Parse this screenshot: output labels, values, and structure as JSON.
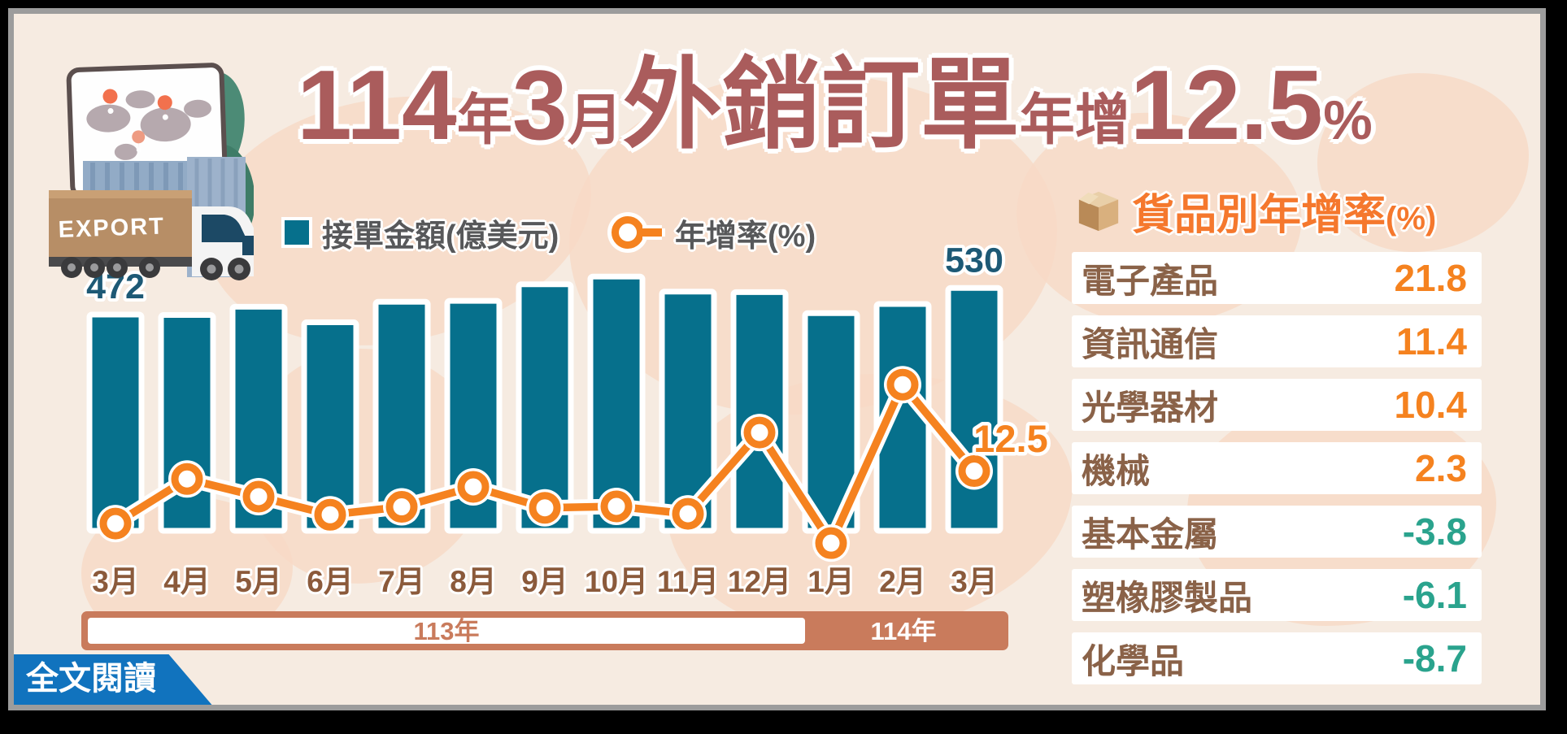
{
  "palette": {
    "background": "#F6EBE1",
    "map_shape": "#F7D9C6",
    "bar": "#06708C",
    "bar_label": "#1D5975",
    "line": "#F5821F",
    "title": "#AA5C5C",
    "month_label": "#8B5A3B",
    "year_band": "#C97B5C",
    "table_label": "#8A6248",
    "positive": "#F5821F",
    "negative": "#2AA38D",
    "panel_title": "#F5782D",
    "legend_text": "#57585A",
    "read_more_bg": "#1173BE",
    "frame_black": "#000000",
    "frame_gray": "#9C9C9C"
  },
  "title": {
    "year_number": "114",
    "year_unit": "年",
    "month_number": "3",
    "month_unit": "月",
    "subject": "外銷訂單",
    "growth_label": "年增",
    "rate": "12.5",
    "percent_sign": "%"
  },
  "legend": [
    {
      "label": "接單金額(億美元)",
      "marker": "bar-square"
    },
    {
      "label": "年增率(%)",
      "marker": "line-circle"
    }
  ],
  "chart_data": {
    "type": "bar+line",
    "title": "114年3月外銷訂單年增12.5%",
    "categories": [
      "3月",
      "4月",
      "5月",
      "6月",
      "7月",
      "8月",
      "9月",
      "10月",
      "11月",
      "12月",
      "1月",
      "2月",
      "3月"
    ],
    "series": [
      {
        "name": "接單金額(億美元)",
        "type": "bar",
        "values": [
          472,
          471,
          489,
          455,
          500,
          502,
          538,
          555,
          522,
          521,
          475,
          495,
          530
        ]
      },
      {
        "name": "年增率(%)",
        "type": "line",
        "values": [
          1.2,
          10.8,
          7.0,
          3.1,
          4.8,
          9.1,
          4.6,
          4.9,
          3.3,
          20.8,
          -3.0,
          31.1,
          12.5
        ]
      }
    ],
    "bar_value_labels": [
      {
        "index": 0,
        "text": "472"
      },
      {
        "index": 12,
        "text": "530"
      }
    ],
    "line_end_label": "12.5",
    "x_axis_groups": [
      {
        "label": "113年",
        "start": 0,
        "end": 9
      },
      {
        "label": "114年",
        "start": 10,
        "end": 12
      }
    ],
    "grid": false,
    "legend_position": "top"
  },
  "category_table": {
    "title_main": "貨品別年增率",
    "title_unit": "(%)",
    "rows": [
      {
        "label": "電子產品",
        "value": "21.8"
      },
      {
        "label": "資訊通信",
        "value": "11.4"
      },
      {
        "label": "光學器材",
        "value": "10.4"
      },
      {
        "label": "機械",
        "value": "2.3"
      },
      {
        "label": "基本金屬",
        "value": "-3.8"
      },
      {
        "label": "塑橡膠製品",
        "value": "-6.1"
      },
      {
        "label": "化學品",
        "value": "-8.7"
      }
    ]
  },
  "footer": {
    "read_more": "全文閱讀"
  },
  "logo": {
    "export_label": "EXPORT"
  }
}
